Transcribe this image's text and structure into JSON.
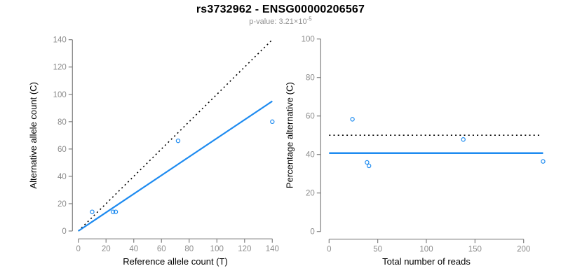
{
  "header": {
    "title": "rs3732962 - ENSG00000206567",
    "subtitle_prefix": "p-value: 3.21×10",
    "subtitle_exponent": "-5"
  },
  "colors": {
    "accent_blue": "#1E8BF0",
    "dotted_black": "#000000",
    "axis_gray": "#808080",
    "tick_label_gray": "#8C8C8C",
    "axis_title_black": "#000000",
    "subtitle_gray": "#909090",
    "background": "#FFFFFF"
  },
  "chart_data": [
    {
      "type": "scatter",
      "name": "ref-vs-alt-counts",
      "xlabel": "Reference allele count (T)",
      "ylabel": "Alternative allele count (C)",
      "xlim": [
        0,
        140
      ],
      "ylim": [
        0,
        140
      ],
      "x_ticks": [
        0,
        20,
        40,
        60,
        80,
        100,
        120,
        140
      ],
      "y_ticks": [
        0,
        20,
        40,
        60,
        80,
        100,
        120,
        140
      ],
      "grid": false,
      "legend": "none",
      "points": [
        [
          10,
          14
        ],
        [
          25,
          14
        ],
        [
          27,
          14
        ],
        [
          72,
          66
        ],
        [
          140,
          80
        ]
      ],
      "lines": [
        {
          "name": "identity-line",
          "style": "dotted",
          "color": "#000000",
          "width": 1.6,
          "points": [
            [
              0,
              0
            ],
            [
              140,
              140
            ]
          ]
        },
        {
          "name": "fit-line",
          "style": "solid",
          "color": "#1E8BF0",
          "width": 2.2,
          "points": [
            [
              0,
              0
            ],
            [
              140,
              95
            ]
          ]
        }
      ]
    },
    {
      "type": "scatter",
      "name": "percentage-vs-total-reads",
      "xlabel": "Total number of reads",
      "ylabel": "Percentage alternative (C)",
      "xlim": [
        0,
        200
      ],
      "ylim": [
        0,
        100
      ],
      "x_ticks": [
        0,
        50,
        100,
        150,
        200
      ],
      "y_ticks": [
        0,
        20,
        40,
        60,
        80,
        100
      ],
      "grid": false,
      "legend": "none",
      "points": [
        [
          24,
          58.3
        ],
        [
          39,
          35.9
        ],
        [
          41,
          34.1
        ],
        [
          138,
          47.8
        ],
        [
          220,
          36.4
        ]
      ],
      "lines": [
        {
          "name": "expected-50pct-line",
          "style": "dotted",
          "color": "#000000",
          "width": 1.6,
          "points": [
            [
              0,
              50
            ],
            [
              218,
              50
            ]
          ]
        },
        {
          "name": "fit-line",
          "style": "solid",
          "color": "#1E8BF0",
          "width": 2.5,
          "points": [
            [
              0,
              40.7
            ],
            [
              220,
              40.7
            ]
          ]
        }
      ]
    }
  ]
}
